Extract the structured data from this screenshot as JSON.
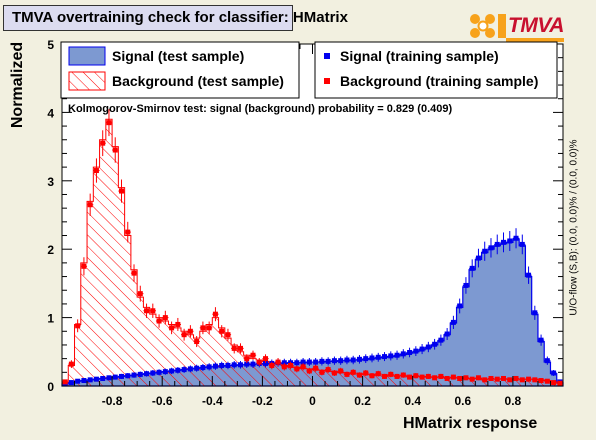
{
  "title": "TMVA overtraining check for classifier: HMatrix",
  "logo_text": "TMVA",
  "ylabel": "Normalized",
  "xlabel": "HMatrix response",
  "overflow_label": "U/O-flow (S,B): (0.0, 0.0)% / (0.0, 0.0)%",
  "ks_text": "Kolmogorov-Smirnov test: signal (background) probability = 0.829 (0.409)",
  "legend": [
    {
      "label": "Signal (test sample)"
    },
    {
      "label": "Background (test sample)"
    },
    {
      "label": "Signal (training sample)"
    },
    {
      "label": "Background (training sample)"
    }
  ],
  "colors": {
    "signal_fill": "#7d99d1",
    "signal_line": "#0000ee",
    "background": "#ff0000",
    "frame_bg": "#ffffff",
    "canvas_bg": "#f2f0e0",
    "title_bg": "#dcdcf0"
  },
  "chart_data": {
    "type": "histogram",
    "title": "TMVA overtraining check for classifier: HMatrix",
    "xlabel": "HMatrix response",
    "ylabel": "Normalized",
    "xlim": [
      -1.0,
      1.0
    ],
    "ylim": [
      0,
      5
    ],
    "xticks": [
      "-0.8",
      "-0.6",
      "-0.4",
      "-0.2",
      "0",
      "0.2",
      "0.4",
      "0.6",
      "0.8"
    ],
    "yticks": [
      "0",
      "1",
      "2",
      "3",
      "4",
      "5"
    ],
    "bins": 80,
    "series": [
      {
        "name": "Signal (test sample)",
        "style": "filled",
        "values": [
          0.03,
          0.05,
          0.07,
          0.08,
          0.09,
          0.1,
          0.11,
          0.12,
          0.13,
          0.14,
          0.15,
          0.16,
          0.17,
          0.18,
          0.19,
          0.2,
          0.21,
          0.22,
          0.23,
          0.24,
          0.25,
          0.26,
          0.27,
          0.28,
          0.28,
          0.29,
          0.3,
          0.3,
          0.31,
          0.31,
          0.32,
          0.32,
          0.32,
          0.33,
          0.33,
          0.33,
          0.34,
          0.34,
          0.34,
          0.35,
          0.35,
          0.35,
          0.36,
          0.36,
          0.37,
          0.37,
          0.38,
          0.38,
          0.39,
          0.4,
          0.41,
          0.42,
          0.43,
          0.44,
          0.46,
          0.48,
          0.5,
          0.53,
          0.56,
          0.6,
          0.66,
          0.75,
          0.92,
          1.15,
          1.45,
          1.7,
          1.85,
          1.95,
          2.0,
          2.05,
          2.08,
          2.1,
          2.15,
          2.05,
          1.6,
          1.05,
          0.65,
          0.35,
          0.18,
          0.05
        ]
      },
      {
        "name": "Background (test sample)",
        "style": "hatched",
        "values": [
          0.05,
          0.3,
          0.9,
          1.8,
          2.7,
          3.2,
          3.6,
          3.9,
          3.5,
          2.9,
          2.2,
          1.7,
          1.3,
          1.15,
          1.05,
          1.0,
          0.95,
          0.9,
          0.85,
          0.8,
          0.75,
          0.7,
          0.8,
          0.9,
          1.0,
          0.85,
          0.7,
          0.6,
          0.5,
          0.45,
          0.4,
          0.38,
          0.36,
          0.34,
          0.32,
          0.3,
          0.28,
          0.27,
          0.26,
          0.25,
          0.24,
          0.23,
          0.22,
          0.21,
          0.2,
          0.19,
          0.18,
          0.18,
          0.17,
          0.17,
          0.16,
          0.16,
          0.15,
          0.15,
          0.15,
          0.14,
          0.14,
          0.14,
          0.13,
          0.13,
          0.13,
          0.12,
          0.12,
          0.12,
          0.11,
          0.11,
          0.11,
          0.1,
          0.1,
          0.1,
          0.1,
          0.1,
          0.1,
          0.1,
          0.1,
          0.1,
          0.09,
          0.08,
          0.06,
          0.04
        ]
      },
      {
        "name": "Signal (training sample)",
        "style": "markers",
        "values": [
          0.03,
          0.05,
          0.07,
          0.08,
          0.09,
          0.1,
          0.11,
          0.12,
          0.13,
          0.14,
          0.15,
          0.16,
          0.17,
          0.18,
          0.19,
          0.2,
          0.21,
          0.22,
          0.23,
          0.24,
          0.25,
          0.26,
          0.27,
          0.28,
          0.29,
          0.3,
          0.3,
          0.31,
          0.31,
          0.32,
          0.32,
          0.33,
          0.33,
          0.33,
          0.34,
          0.34,
          0.34,
          0.34,
          0.35,
          0.35,
          0.35,
          0.36,
          0.36,
          0.37,
          0.37,
          0.38,
          0.38,
          0.39,
          0.4,
          0.41,
          0.42,
          0.43,
          0.44,
          0.45,
          0.47,
          0.49,
          0.51,
          0.54,
          0.57,
          0.61,
          0.67,
          0.76,
          0.93,
          1.17,
          1.47,
          1.72,
          1.87,
          1.97,
          2.02,
          2.07,
          2.1,
          2.12,
          2.16,
          2.07,
          1.62,
          1.07,
          0.67,
          0.37,
          0.19,
          0.06
        ]
      },
      {
        "name": "Background (training sample)",
        "style": "markers",
        "values": [
          0.06,
          0.32,
          0.88,
          1.75,
          2.65,
          3.15,
          3.55,
          3.85,
          3.45,
          2.85,
          2.25,
          1.65,
          1.35,
          1.1,
          1.1,
          0.95,
          1.0,
          0.85,
          0.9,
          0.75,
          0.8,
          0.65,
          0.85,
          0.85,
          1.05,
          0.8,
          0.75,
          0.55,
          0.55,
          0.4,
          0.45,
          0.35,
          0.4,
          0.3,
          0.35,
          0.28,
          0.3,
          0.25,
          0.28,
          0.22,
          0.26,
          0.2,
          0.24,
          0.19,
          0.22,
          0.17,
          0.2,
          0.16,
          0.19,
          0.15,
          0.18,
          0.14,
          0.17,
          0.14,
          0.16,
          0.13,
          0.15,
          0.13,
          0.14,
          0.12,
          0.14,
          0.11,
          0.13,
          0.11,
          0.12,
          0.1,
          0.12,
          0.09,
          0.11,
          0.1,
          0.11,
          0.09,
          0.11,
          0.09,
          0.1,
          0.09,
          0.08,
          0.07,
          0.05,
          0.04
        ]
      }
    ],
    "legend_position": "top"
  }
}
